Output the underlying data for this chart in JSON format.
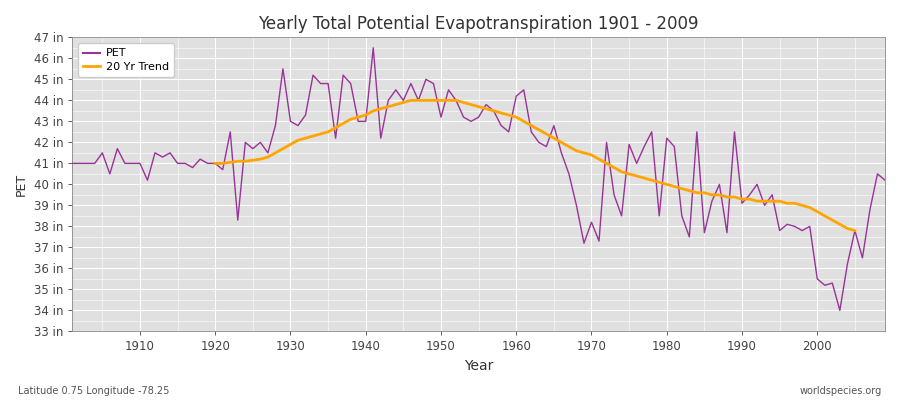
{
  "title": "Yearly Total Potential Evapotranspiration 1901 - 2009",
  "xlabel": "Year",
  "ylabel": "PET",
  "xlim": [
    1901,
    2009
  ],
  "ylim": [
    33,
    47
  ],
  "yticks": [
    33,
    34,
    35,
    36,
    37,
    38,
    39,
    40,
    41,
    42,
    43,
    44,
    45,
    46,
    47
  ],
  "xticks": [
    1910,
    1920,
    1930,
    1940,
    1950,
    1960,
    1970,
    1980,
    1990,
    2000
  ],
  "pet_color": "#993399",
  "trend_color": "#FFA500",
  "fig_bg_color": "#ffffff",
  "plot_bg_color": "#e0e0e0",
  "grid_color": "#ffffff",
  "pet_label": "PET",
  "trend_label": "20 Yr Trend",
  "footer_left": "Latitude 0.75 Longitude -78.25",
  "footer_right": "worldspecies.org",
  "pet_values": [
    41.0,
    41.0,
    41.0,
    41.0,
    41.5,
    40.5,
    41.7,
    41.0,
    41.0,
    41.0,
    40.2,
    41.5,
    41.3,
    41.5,
    41.0,
    41.0,
    40.8,
    41.2,
    41.0,
    41.0,
    40.7,
    42.5,
    38.3,
    42.0,
    41.7,
    42.0,
    41.5,
    42.8,
    45.5,
    43.0,
    42.8,
    43.3,
    45.2,
    44.8,
    44.8,
    42.2,
    45.2,
    44.8,
    43.0,
    43.0,
    46.5,
    42.2,
    44.0,
    44.5,
    44.0,
    44.8,
    44.0,
    45.0,
    44.8,
    43.2,
    44.5,
    44.0,
    43.2,
    43.0,
    43.2,
    43.8,
    43.5,
    42.8,
    42.5,
    44.2,
    44.5,
    42.5,
    42.0,
    41.8,
    42.8,
    41.5,
    40.5,
    39.0,
    37.2,
    38.2,
    37.3,
    42.0,
    39.5,
    38.5,
    41.9,
    41.0,
    41.8,
    42.5,
    38.5,
    42.2,
    41.8,
    38.5,
    37.5,
    42.5,
    37.7,
    39.2,
    40.0,
    37.7,
    42.5,
    39.1,
    39.5,
    40.0,
    39.0,
    39.5,
    37.8,
    38.1,
    38.0,
    37.8,
    38.0,
    35.5,
    35.2,
    35.3,
    34.0,
    36.2,
    37.8,
    36.5,
    38.8,
    40.5,
    40.2
  ],
  "trend_start_year": 1920,
  "trend_years": [
    1920,
    1921,
    1922,
    1923,
    1924,
    1925,
    1926,
    1927,
    1928,
    1929,
    1930,
    1931,
    1932,
    1933,
    1934,
    1935,
    1936,
    1937,
    1938,
    1939,
    1940,
    1941,
    1942,
    1943,
    1944,
    1945,
    1946,
    1947,
    1948,
    1949,
    1950,
    1951,
    1952,
    1953,
    1954,
    1955,
    1956,
    1957,
    1958,
    1959,
    1960,
    1961,
    1962,
    1963,
    1964,
    1965,
    1966,
    1967,
    1968,
    1969,
    1970,
    1971,
    1972,
    1973,
    1974,
    1975,
    1976,
    1977,
    1978,
    1979,
    1980,
    1981,
    1982,
    1983,
    1984,
    1985,
    1986,
    1987,
    1988,
    1989,
    1990,
    1991,
    1992,
    1993,
    1994,
    1995,
    1996,
    1997,
    1998,
    1999,
    2000,
    2001,
    2002,
    2003,
    2004,
    2005
  ],
  "trend_values": [
    41.0,
    41.0,
    41.05,
    41.1,
    41.1,
    41.15,
    41.2,
    41.3,
    41.5,
    41.7,
    41.9,
    42.1,
    42.2,
    42.3,
    42.4,
    42.5,
    42.7,
    42.9,
    43.1,
    43.2,
    43.3,
    43.5,
    43.6,
    43.7,
    43.8,
    43.9,
    44.0,
    44.0,
    44.0,
    44.0,
    44.0,
    44.0,
    44.0,
    43.9,
    43.8,
    43.7,
    43.6,
    43.5,
    43.4,
    43.3,
    43.2,
    43.0,
    42.8,
    42.6,
    42.4,
    42.2,
    42.0,
    41.8,
    41.6,
    41.5,
    41.4,
    41.2,
    41.0,
    40.8,
    40.6,
    40.5,
    40.4,
    40.3,
    40.2,
    40.1,
    40.0,
    39.9,
    39.8,
    39.7,
    39.6,
    39.6,
    39.5,
    39.5,
    39.4,
    39.4,
    39.3,
    39.3,
    39.2,
    39.2,
    39.2,
    39.2,
    39.1,
    39.1,
    39.0,
    38.9,
    38.7,
    38.5,
    38.3,
    38.1,
    37.9,
    37.8
  ]
}
